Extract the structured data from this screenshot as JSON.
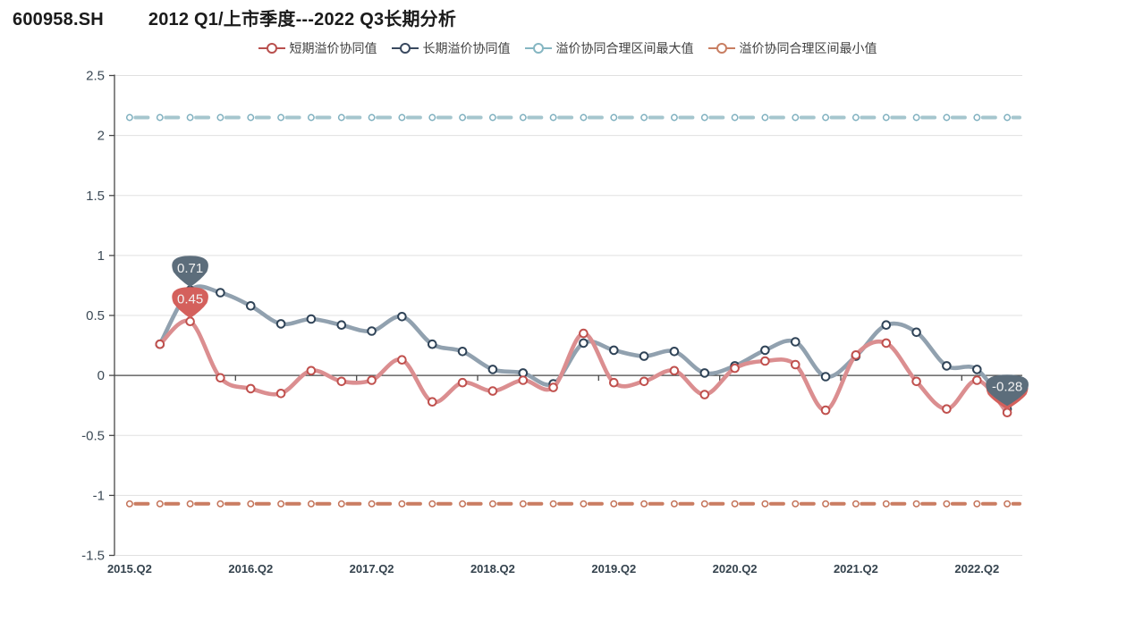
{
  "header": {
    "symbol": "600958.SH",
    "title": "2012 Q1/上市季度---2022 Q3长期分析"
  },
  "legend": [
    {
      "label": "短期溢价协同值",
      "color": "#b9504e"
    },
    {
      "label": "长期溢价协同值",
      "color": "#39495f"
    },
    {
      "label": "溢价协同合理区间最大值",
      "color": "#85b6c2"
    },
    {
      "label": "溢价协同合理区间最小值",
      "color": "#c87e62"
    }
  ],
  "chart_data": {
    "type": "line",
    "categories": [
      "2015.Q2",
      "2015.Q3",
      "2015.Q4",
      "2016.Q1",
      "2016.Q2",
      "2016.Q3",
      "2016.Q4",
      "2017.Q1",
      "2017.Q2",
      "2017.Q3",
      "2017.Q4",
      "2018.Q1",
      "2018.Q2",
      "2018.Q3",
      "2018.Q4",
      "2019.Q1",
      "2019.Q2",
      "2019.Q3",
      "2019.Q4",
      "2020.Q1",
      "2020.Q2",
      "2020.Q3",
      "2020.Q4",
      "2021.Q1",
      "2021.Q2",
      "2021.Q3",
      "2021.Q4",
      "2022.Q1",
      "2022.Q2",
      "2022.Q3"
    ],
    "x_tick_labels": [
      "2015.Q2",
      "2016.Q2",
      "2017.Q2",
      "2018.Q2",
      "2019.Q2",
      "2020.Q2",
      "2021.Q2",
      "2022.Q2"
    ],
    "x_label_every": 4,
    "y_ticks": [
      2.5,
      2,
      1.5,
      1,
      0.5,
      0,
      -0.5,
      -1,
      -1.5
    ],
    "y_tick_labels": [
      "2.5",
      "2",
      "1.5",
      "1",
      "0.5",
      "0",
      "-0.5",
      "-1",
      "-1.5"
    ],
    "ylim": [
      -1.5,
      2.5
    ],
    "grid": true,
    "legend_position": "top",
    "series": [
      {
        "name": "溢价协同合理区间最大值",
        "type": "dashed-constant",
        "value_constant": 2.15,
        "line_color": "#a5c6ce",
        "marker_color": "#7fb0bf"
      },
      {
        "name": "溢价协同合理区间最小值",
        "type": "dashed-constant",
        "value_constant": -1.07,
        "line_color": "#ca7d62",
        "marker_color": "#c4745a"
      },
      {
        "name": "长期溢价协同值",
        "type": "smooth-line",
        "start_index": 1,
        "line_color": "#91a1af",
        "marker_color": "#2f4357",
        "values": [
          0.26,
          0.71,
          0.69,
          0.58,
          0.43,
          0.47,
          0.42,
          0.37,
          0.49,
          0.26,
          0.2,
          0.05,
          0.02,
          -0.07,
          0.27,
          0.21,
          0.16,
          0.2,
          0.02,
          0.08,
          0.21,
          0.28,
          -0.01,
          0.16,
          0.42,
          0.36,
          0.08,
          0.05,
          -0.28
        ]
      },
      {
        "name": "短期溢价协同值",
        "type": "smooth-line",
        "start_index": 1,
        "line_color": "#db8e90",
        "marker_color": "#c0504d",
        "values": [
          0.26,
          0.45,
          -0.02,
          -0.11,
          -0.15,
          0.04,
          -0.05,
          -0.04,
          0.13,
          -0.22,
          -0.06,
          -0.13,
          -0.04,
          -0.1,
          0.35,
          -0.06,
          -0.05,
          0.04,
          -0.16,
          0.06,
          0.12,
          0.09,
          -0.29,
          0.17,
          0.27,
          -0.05,
          -0.28,
          -0.04,
          -0.31
        ]
      }
    ],
    "annotations": [
      {
        "text": "0.71",
        "series": "长期溢价协同值",
        "category": "2015.Q4",
        "value": 0.71,
        "color": "#5c6d7b"
      },
      {
        "text": "0.45",
        "series": "短期溢价协同值",
        "category": "2015.Q4",
        "value": 0.45,
        "color": "#d4605c"
      },
      {
        "text": "",
        "series": "短期溢价协同值",
        "category": "2022.Q3",
        "value": -0.31,
        "color": "#d4605c"
      },
      {
        "text": "-0.28",
        "series": "长期溢价协同值",
        "category": "2022.Q3",
        "value": -0.28,
        "color": "#5c6d7b"
      }
    ],
    "axis_color": "#474747",
    "grid_color": "#e0e0e0",
    "x_label_color": "#34424d",
    "y_label_color": "#3b4955"
  }
}
